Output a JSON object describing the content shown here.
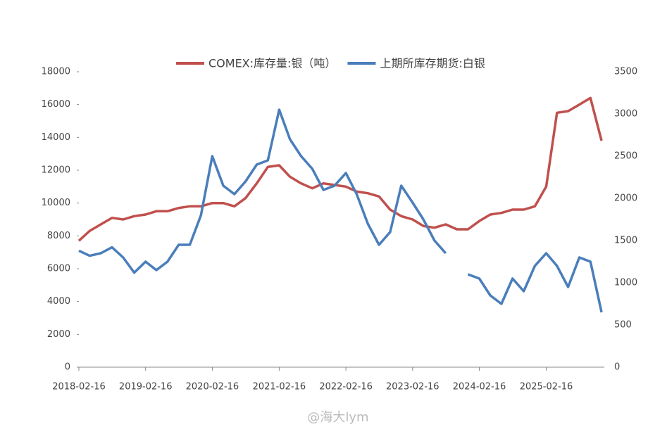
{
  "chart_data": {
    "type": "line",
    "legend": "top",
    "x": [
      "2018-02-16",
      "2018-04-16",
      "2018-06-16",
      "2018-08-16",
      "2018-10-16",
      "2018-12-16",
      "2019-02-16",
      "2019-04-16",
      "2019-06-16",
      "2019-08-16",
      "2019-10-16",
      "2019-12-16",
      "2020-02-16",
      "2020-04-16",
      "2020-06-16",
      "2020-08-16",
      "2020-10-16",
      "2020-12-16",
      "2021-02-16",
      "2021-04-16",
      "2021-06-16",
      "2021-08-16",
      "2021-10-16",
      "2021-12-16",
      "2022-02-16",
      "2022-04-16",
      "2022-06-16",
      "2022-08-16",
      "2022-10-16",
      "2022-12-16",
      "2023-02-16",
      "2023-04-16",
      "2023-06-16",
      "2023-08-16",
      "2023-10-16",
      "2023-12-16",
      "2024-02-16",
      "2024-04-16",
      "2024-06-16",
      "2024-08-16",
      "2024-10-16",
      "2024-12-16",
      "2025-02-16",
      "2025-04-16",
      "2025-06-16",
      "2025-08-16",
      "2025-10-16",
      "2025-12-16"
    ],
    "xlim": [
      "2018-02-16",
      "2025-12-31"
    ],
    "xticks": [
      "2018-02-16",
      "2019-02-16",
      "2020-02-16",
      "2021-02-16",
      "2022-02-16",
      "2023-02-16",
      "2024-02-16",
      "2025-02-16"
    ],
    "ylim": [
      0,
      18000
    ],
    "yticks": [
      0,
      2000,
      4000,
      6000,
      8000,
      10000,
      12000,
      14000,
      16000,
      18000
    ],
    "y2lim": [
      0,
      3500
    ],
    "y2ticks": [
      0,
      500,
      1000,
      1500,
      2000,
      2500,
      3000,
      3500
    ],
    "series": [
      {
        "name": "COMEX:库存量:银（吨）",
        "color": "#c0504d",
        "axis": "y",
        "values": [
          7700,
          8300,
          8700,
          9100,
          9000,
          9200,
          9300,
          9500,
          9500,
          9700,
          9800,
          9800,
          10000,
          10000,
          9800,
          10300,
          11200,
          12200,
          12300,
          11600,
          11200,
          10900,
          11200,
          11100,
          11000,
          10700,
          10600,
          10400,
          9600,
          9200,
          9000,
          8600,
          8500,
          8700,
          8400,
          8400,
          8900,
          9300,
          9400,
          9600,
          9600,
          9800,
          11000,
          15500,
          15600,
          16000,
          16400,
          13800
        ]
      },
      {
        "name": "上期所库存期货:白银",
        "color": "#4a7ebb",
        "axis": "y2",
        "values": [
          1380,
          1320,
          1350,
          1420,
          1300,
          1120,
          1250,
          1150,
          1250,
          1450,
          1450,
          1800,
          2500,
          2150,
          2050,
          2200,
          2400,
          2450,
          3050,
          2700,
          2500,
          2350,
          2100,
          2150,
          2300,
          2050,
          1700,
          1450,
          1600,
          2150,
          1950,
          1750,
          1500,
          1350,
          null,
          1100,
          1050,
          850,
          750,
          1050,
          900,
          1200,
          1350,
          1200,
          950,
          1300,
          1250,
          650
        ]
      }
    ],
    "watermark": "@海大lym"
  }
}
